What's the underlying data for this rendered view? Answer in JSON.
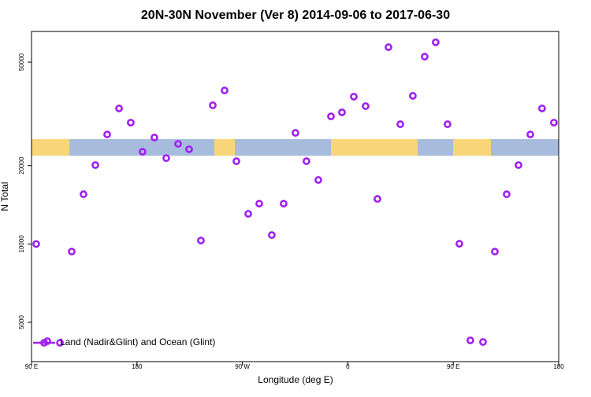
{
  "chart_data": {
    "type": "scatter",
    "title": "20N-30N November (Ver 8)   2014-09-06 to 2017-06-30",
    "xlabel": "Longitude (deg E)",
    "ylabel": "N Total",
    "xlim": [
      90,
      540
    ],
    "ylim": [
      3530,
      65600
    ],
    "ylog": true,
    "xticks": [
      {
        "value": 90,
        "label": "90 E"
      },
      {
        "value": 180,
        "label": "180"
      },
      {
        "value": 270,
        "label": "90 W"
      },
      {
        "value": 360,
        "label": "0"
      },
      {
        "value": 450,
        "label": "90 E"
      },
      {
        "value": 540,
        "label": "180"
      }
    ],
    "yticks": [
      5000,
      10000,
      20000,
      50000
    ],
    "legend": "bottom-left",
    "series": [
      {
        "name": "Land (Nadir&Glint) and Ocean (Glint)",
        "color": "#a020f0",
        "x": [
          94,
          103.5,
          114.3,
          124.3,
          134.4,
          144.5,
          154.6,
          164.7,
          174.7,
          184.8,
          194.9,
          205,
          215.1,
          224.5,
          234.6,
          244.7,
          254.8,
          264.9,
          275,
          284.4,
          295.1,
          305.2,
          315.3,
          324.7,
          334.8,
          345.6,
          355,
          365.1,
          375.2,
          385.3,
          394.7,
          404.8,
          415.5,
          425.6,
          435,
          445.1,
          455.2,
          464.6,
          475.4,
          485.5,
          495.6,
          505.7,
          515.8,
          525.8,
          535.9
        ],
        "values": [
          10000,
          4230,
          4170,
          9350,
          15530,
          20100,
          26360,
          33190,
          29270,
          22620,
          25650,
          21380,
          24260,
          23120,
          10310,
          34120,
          38920,
          20800,
          13060,
          14290,
          10820,
          14290,
          26730,
          20800,
          17620,
          30930,
          32060,
          36840,
          33880,
          14900,
          57060,
          28850,
          37100,
          52480,
          59600,
          28850,
          10020,
          4260,
          4200,
          9350,
          15530,
          20100,
          26360,
          33190,
          29270
        ]
      }
    ]
  }
}
